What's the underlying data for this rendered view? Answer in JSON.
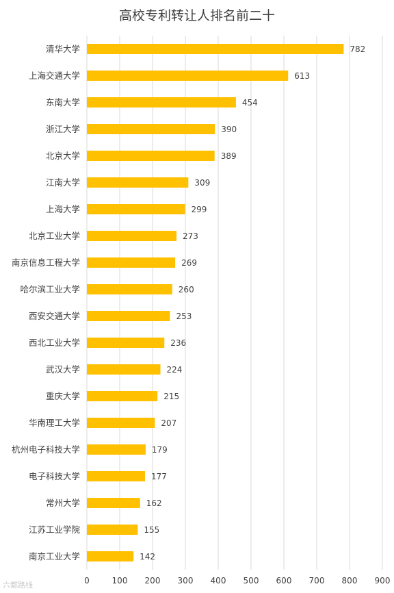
{
  "watermark": "六都路线",
  "chart_data": {
    "type": "bar",
    "orientation": "horizontal",
    "title": "高校专利转让人排名前二十",
    "xlabel": "",
    "ylabel": "",
    "xlim": [
      0,
      900
    ],
    "ticks": [
      0,
      100,
      200,
      300,
      400,
      500,
      600,
      700,
      800,
      900
    ],
    "grid": true,
    "legend": "none",
    "bar_color": "#FFC000",
    "categories": [
      "清华大学",
      "上海交通大学",
      "东南大学",
      "浙江大学",
      "北京大学",
      "江南大学",
      "上海大学",
      "北京工业大学",
      "南京信息工程大学",
      "哈尔滨工业大学",
      "西安交通大学",
      "西北工业大学",
      "武汉大学",
      "重庆大学",
      "华南理工大学",
      "杭州电子科技大学",
      "电子科技大学",
      "常州大学",
      "江苏工业学院",
      "南京工业大学"
    ],
    "values": [
      782,
      613,
      454,
      390,
      389,
      309,
      299,
      273,
      269,
      260,
      253,
      236,
      224,
      215,
      207,
      179,
      177,
      162,
      155,
      142
    ]
  }
}
